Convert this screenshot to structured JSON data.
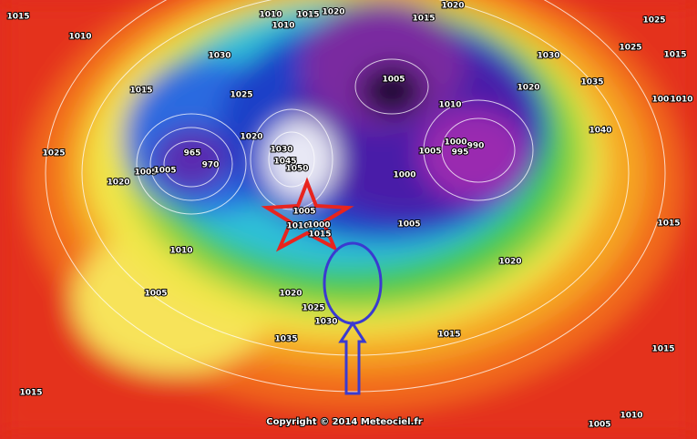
{
  "labels": [
    "1015",
    "1010",
    "1010",
    "1010",
    "1015",
    "1020",
    "1015",
    "1020",
    "1025",
    "1025",
    "1015",
    "1030",
    "1030",
    "1005",
    "1035",
    "1015",
    "1025",
    "1020",
    "1010",
    "1001",
    "1010",
    "1025",
    "1020",
    "1030",
    "1040",
    "1000",
    "990",
    "995",
    "1005",
    "965",
    "970",
    "1045",
    "1050",
    "1005",
    "1005",
    "1020",
    "1000",
    "1005",
    "1010",
    "1000",
    "1015",
    "1005",
    "1015",
    "1010",
    "1020",
    "1005",
    "1020",
    "1025",
    "1030",
    "1035",
    "1015",
    "1015",
    "1015",
    "1010",
    "1005"
  ],
  "copyright": "Copyright © 2014 Meteociel.fr"
}
